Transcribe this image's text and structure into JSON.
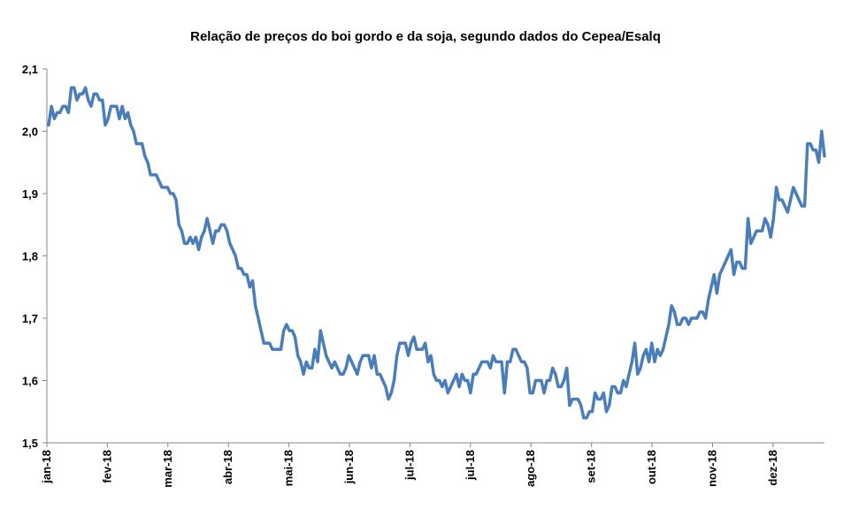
{
  "chart_data": {
    "type": "line",
    "title": "Relação de preços do boi gordo e da soja, segundo dados do Cepea/Esalq",
    "xlabel": "",
    "ylabel": "",
    "ylim": [
      1.5,
      2.1
    ],
    "yticks": [
      "2,1",
      "2,0",
      "1,9",
      "1,8",
      "1,7",
      "1,6",
      "1,5"
    ],
    "xticks": [
      "jan-18",
      "fev-18",
      "mar-18",
      "abr-18",
      "mai-18",
      "jun-18",
      "jul-18",
      "jul-18",
      "ago-18",
      "set-18",
      "out-18",
      "nov-18",
      "dez-18"
    ],
    "grid": false,
    "legend": "none",
    "line_color": "#4a7ebb",
    "series": [
      {
        "values": [
          2.01,
          2.04,
          2.02,
          2.03,
          2.03,
          2.04,
          2.04,
          2.03,
          2.07,
          2.07,
          2.05,
          2.06,
          2.06,
          2.07,
          2.05,
          2.04,
          2.06,
          2.06,
          2.05,
          2.05,
          2.01,
          2.02,
          2.04,
          2.04,
          2.04,
          2.02,
          2.04,
          2.02,
          2.03,
          2.01,
          2.0,
          1.98,
          1.98,
          1.98,
          1.96,
          1.95,
          1.93,
          1.93,
          1.93,
          1.92,
          1.91,
          1.91,
          1.91,
          1.9,
          1.9,
          1.89,
          1.85,
          1.84,
          1.82,
          1.82,
          1.83,
          1.82,
          1.83,
          1.81,
          1.83,
          1.84,
          1.86,
          1.84,
          1.82,
          1.84,
          1.84,
          1.85,
          1.85,
          1.84,
          1.82,
          1.81,
          1.8,
          1.78,
          1.78,
          1.77,
          1.77,
          1.75,
          1.76,
          1.72,
          1.7,
          1.68,
          1.66,
          1.66,
          1.66,
          1.65,
          1.65,
          1.65,
          1.65,
          1.68,
          1.69,
          1.68,
          1.68,
          1.67,
          1.64,
          1.63,
          1.61,
          1.63,
          1.62,
          1.62,
          1.65,
          1.63,
          1.68,
          1.66,
          1.64,
          1.63,
          1.62,
          1.63,
          1.62,
          1.61,
          1.61,
          1.62,
          1.64,
          1.63,
          1.62,
          1.61,
          1.63,
          1.64,
          1.64,
          1.64,
          1.62,
          1.64,
          1.61,
          1.61,
          1.6,
          1.59,
          1.57,
          1.58,
          1.6,
          1.64,
          1.66,
          1.66,
          1.66,
          1.64,
          1.66,
          1.67,
          1.65,
          1.65,
          1.65,
          1.66,
          1.63,
          1.64,
          1.61,
          1.6,
          1.6,
          1.59,
          1.6,
          1.58,
          1.59,
          1.6,
          1.61,
          1.59,
          1.61,
          1.6,
          1.6,
          1.58,
          1.61,
          1.61,
          1.62,
          1.63,
          1.63,
          1.63,
          1.62,
          1.64,
          1.63,
          1.63,
          1.63,
          1.58,
          1.63,
          1.63,
          1.65,
          1.65,
          1.64,
          1.63,
          1.63,
          1.62,
          1.58,
          1.58,
          1.6,
          1.6,
          1.6,
          1.58,
          1.6,
          1.6,
          1.62,
          1.61,
          1.59,
          1.59,
          1.6,
          1.62,
          1.56,
          1.57,
          1.57,
          1.57,
          1.56,
          1.54,
          1.54,
          1.55,
          1.55,
          1.58,
          1.57,
          1.57,
          1.58,
          1.55,
          1.56,
          1.59,
          1.59,
          1.58,
          1.58,
          1.6,
          1.59,
          1.61,
          1.63,
          1.66,
          1.61,
          1.62,
          1.64,
          1.65,
          1.63,
          1.66,
          1.63,
          1.65,
          1.64,
          1.65,
          1.67,
          1.69,
          1.72,
          1.71,
          1.69,
          1.69,
          1.7,
          1.7,
          1.69,
          1.7,
          1.7,
          1.7,
          1.71,
          1.71,
          1.7,
          1.73,
          1.75,
          1.77,
          1.74,
          1.77,
          1.78,
          1.79,
          1.8,
          1.81,
          1.77,
          1.79,
          1.79,
          1.78,
          1.78,
          1.86,
          1.82,
          1.83,
          1.84,
          1.84,
          1.84,
          1.86,
          1.85,
          1.83,
          1.86,
          1.91,
          1.89,
          1.89,
          1.88,
          1.87,
          1.89,
          1.91,
          1.9,
          1.89,
          1.88,
          1.88,
          1.98,
          1.98,
          1.97,
          1.97,
          1.95,
          2.0,
          1.96
        ]
      }
    ]
  }
}
